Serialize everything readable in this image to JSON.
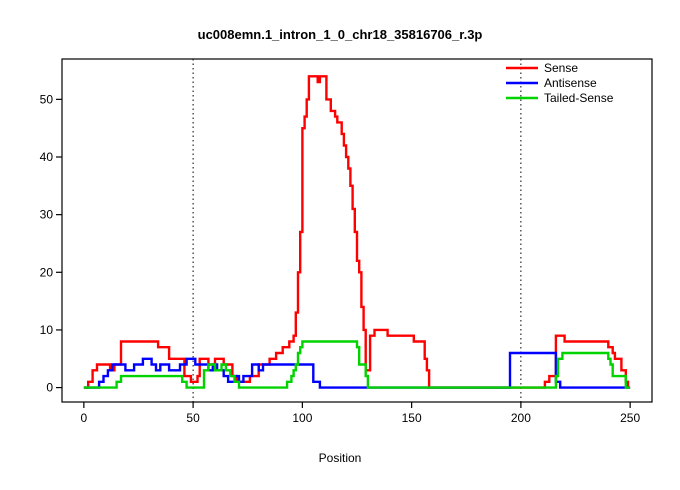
{
  "chart_data": {
    "type": "line",
    "subtype": "step",
    "title": "uc008emn.1_intron_1_0_chr18_35816706_r.3p",
    "xlabel": "Position",
    "ylabel": "",
    "xlim": [
      -10,
      260
    ],
    "ylim": [
      -2.5,
      57
    ],
    "xticks": [
      0,
      50,
      100,
      150,
      200,
      250
    ],
    "yticks": [
      0,
      10,
      20,
      30,
      40,
      50
    ],
    "vlines": [
      50,
      200
    ],
    "grid": false,
    "legend_position": "top-right",
    "series": [
      {
        "name": "Sense",
        "color": "#FF0000",
        "points": [
          [
            0,
            0
          ],
          [
            2,
            1
          ],
          [
            4,
            3
          ],
          [
            6,
            4
          ],
          [
            10,
            4
          ],
          [
            12,
            3
          ],
          [
            14,
            4
          ],
          [
            17,
            8
          ],
          [
            33,
            8
          ],
          [
            34,
            7
          ],
          [
            38,
            7
          ],
          [
            39,
            5
          ],
          [
            45,
            5
          ],
          [
            46,
            2
          ],
          [
            49,
            1
          ],
          [
            52,
            2
          ],
          [
            53,
            5
          ],
          [
            55,
            5
          ],
          [
            57,
            4
          ],
          [
            60,
            5
          ],
          [
            63,
            5
          ],
          [
            64,
            4
          ],
          [
            67,
            4
          ],
          [
            68,
            2
          ],
          [
            70,
            1
          ],
          [
            75,
            1
          ],
          [
            76,
            2
          ],
          [
            79,
            2
          ],
          [
            80,
            4
          ],
          [
            84,
            4
          ],
          [
            85,
            5
          ],
          [
            88,
            6
          ],
          [
            91,
            7
          ],
          [
            94,
            8
          ],
          [
            96,
            9
          ],
          [
            97,
            13
          ],
          [
            98,
            20
          ],
          [
            99,
            27
          ],
          [
            100,
            45
          ],
          [
            101,
            47
          ],
          [
            102,
            50
          ],
          [
            103,
            54
          ],
          [
            106,
            54
          ],
          [
            107,
            53
          ],
          [
            108,
            54
          ],
          [
            110,
            54
          ],
          [
            111,
            50
          ],
          [
            113,
            48
          ],
          [
            115,
            47
          ],
          [
            116,
            46
          ],
          [
            118,
            44
          ],
          [
            119,
            42
          ],
          [
            120,
            40
          ],
          [
            121,
            38
          ],
          [
            122,
            35
          ],
          [
            123,
            31
          ],
          [
            124,
            27
          ],
          [
            125,
            22
          ],
          [
            126,
            20
          ],
          [
            127,
            14
          ],
          [
            128,
            10
          ],
          [
            129,
            3
          ],
          [
            131,
            9
          ],
          [
            133,
            10
          ],
          [
            138,
            10
          ],
          [
            139,
            9
          ],
          [
            150,
            9
          ],
          [
            151,
            8
          ],
          [
            155,
            8
          ],
          [
            156,
            5
          ],
          [
            157,
            3
          ],
          [
            158,
            0
          ],
          [
            210,
            0
          ],
          [
            211,
            1
          ],
          [
            213,
            2
          ],
          [
            215,
            2
          ],
          [
            216,
            9
          ],
          [
            218,
            9
          ],
          [
            220,
            8
          ],
          [
            238,
            8
          ],
          [
            240,
            7
          ],
          [
            242,
            6
          ],
          [
            243,
            5
          ],
          [
            245,
            5
          ],
          [
            246,
            3
          ],
          [
            248,
            1
          ],
          [
            249,
            0
          ],
          [
            250,
            0
          ]
        ]
      },
      {
        "name": "Antisense",
        "color": "#0000FF",
        "points": [
          [
            0,
            0
          ],
          [
            7,
            1
          ],
          [
            9,
            2
          ],
          [
            11,
            3
          ],
          [
            13,
            4
          ],
          [
            18,
            4
          ],
          [
            19,
            3
          ],
          [
            22,
            3
          ],
          [
            23,
            4
          ],
          [
            27,
            5
          ],
          [
            30,
            5
          ],
          [
            31,
            4
          ],
          [
            33,
            3
          ],
          [
            35,
            4
          ],
          [
            38,
            4
          ],
          [
            39,
            3
          ],
          [
            43,
            3
          ],
          [
            44,
            4
          ],
          [
            47,
            5
          ],
          [
            50,
            5
          ],
          [
            51,
            4
          ],
          [
            56,
            4
          ],
          [
            57,
            3
          ],
          [
            59,
            4
          ],
          [
            61,
            3
          ],
          [
            63,
            3
          ],
          [
            64,
            2
          ],
          [
            66,
            1
          ],
          [
            69,
            2
          ],
          [
            71,
            1
          ],
          [
            73,
            2
          ],
          [
            76,
            2
          ],
          [
            77,
            4
          ],
          [
            79,
            4
          ],
          [
            80,
            3
          ],
          [
            82,
            4
          ],
          [
            104,
            4
          ],
          [
            105,
            1
          ],
          [
            107,
            1
          ],
          [
            108,
            0
          ],
          [
            194,
            0
          ],
          [
            195,
            6
          ],
          [
            214,
            6
          ],
          [
            216,
            1
          ],
          [
            218,
            0
          ],
          [
            250,
            0
          ]
        ]
      },
      {
        "name": "Tailed-Sense",
        "color": "#00D300",
        "points": [
          [
            0,
            0
          ],
          [
            15,
            1
          ],
          [
            17,
            2
          ],
          [
            43,
            2
          ],
          [
            45,
            1
          ],
          [
            47,
            0
          ],
          [
            54,
            0
          ],
          [
            55,
            3
          ],
          [
            57,
            4
          ],
          [
            59,
            4
          ],
          [
            60,
            3
          ],
          [
            63,
            4
          ],
          [
            65,
            3
          ],
          [
            67,
            2
          ],
          [
            69,
            1
          ],
          [
            71,
            0
          ],
          [
            92,
            0
          ],
          [
            93,
            1
          ],
          [
            95,
            2
          ],
          [
            96,
            3
          ],
          [
            97,
            4
          ],
          [
            98,
            6
          ],
          [
            99,
            7
          ],
          [
            100,
            8
          ],
          [
            102,
            8
          ],
          [
            124,
            8
          ],
          [
            125,
            7
          ],
          [
            126,
            4
          ],
          [
            128,
            4
          ],
          [
            129,
            2
          ],
          [
            130,
            0
          ],
          [
            214,
            0
          ],
          [
            216,
            2
          ],
          [
            217,
            5
          ],
          [
            219,
            6
          ],
          [
            238,
            6
          ],
          [
            240,
            5
          ],
          [
            241,
            4
          ],
          [
            242,
            2
          ],
          [
            247,
            2
          ],
          [
            248,
            0
          ],
          [
            250,
            0
          ]
        ]
      }
    ]
  }
}
